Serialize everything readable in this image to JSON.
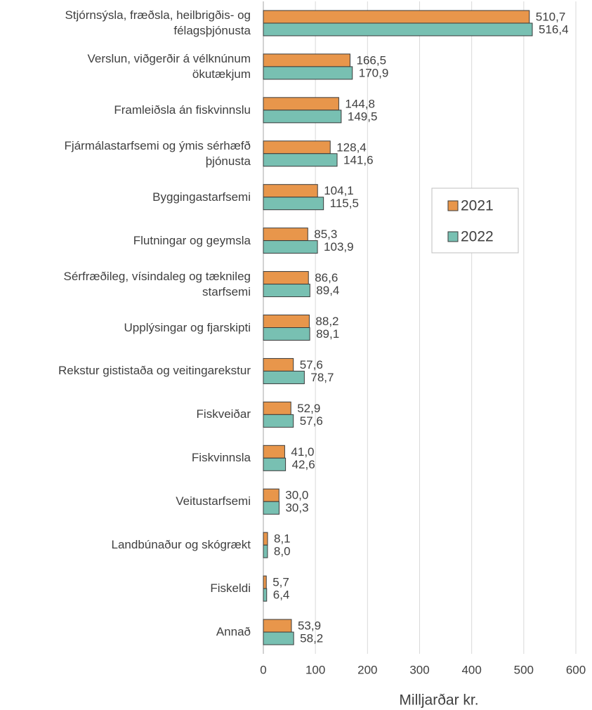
{
  "chart_data": {
    "type": "bar",
    "orientation": "horizontal",
    "x_label": "Milljarðar kr.",
    "categories": [
      "Stjórnsýsla, fræðsla, heilbrigðis- og\nfélagsþjónusta",
      "Verslun, viðgerðir á vélknúnum\nökutækjum",
      "Framleiðsla án fiskvinnslu",
      "Fjármálastarfsemi og ýmis sérhæfð\nþjónusta",
      "Byggingastarfsemi",
      "Flutningar og geymsla",
      "Sérfræðileg, vísindaleg og tæknileg\nstarfsemi",
      "Upplýsingar og fjarskipti",
      "Rekstur gististaða og veitingarekstur",
      "Fiskveiðar",
      "Fiskvinnsla",
      "Veitustarfsemi",
      "Landbúnaður og skógrækt",
      "Fiskeldi",
      "Annað"
    ],
    "series": [
      {
        "name": "2021",
        "color": "#e8964b",
        "values": [
          510.7,
          166.5,
          144.8,
          128.4,
          104.1,
          85.3,
          86.6,
          88.2,
          57.6,
          52.9,
          41.0,
          30.0,
          8.1,
          5.7,
          53.9
        ],
        "value_labels": [
          "510,7",
          "166,5",
          "144,8",
          "128,4",
          "104,1",
          "85,3",
          "86,6",
          "88,2",
          "57,6",
          "52,9",
          "41,0",
          "30,0",
          "8,1",
          "5,7",
          "53,9"
        ]
      },
      {
        "name": "2022",
        "color": "#78c0b2",
        "values": [
          516.4,
          170.9,
          149.5,
          141.6,
          115.5,
          103.9,
          89.4,
          89.1,
          78.7,
          57.6,
          42.6,
          30.3,
          8.0,
          6.4,
          58.2
        ],
        "value_labels": [
          "516,4",
          "170,9",
          "149,5",
          "141,6",
          "115,5",
          "103,9",
          "89,4",
          "89,1",
          "78,7",
          "57,6",
          "42,6",
          "30,3",
          "8,0",
          "6,4",
          "58,2"
        ]
      }
    ],
    "xlim": [
      0,
      600
    ],
    "xticks": [
      0,
      100,
      200,
      300,
      400,
      500,
      600
    ],
    "grid": true,
    "legend": "right"
  }
}
